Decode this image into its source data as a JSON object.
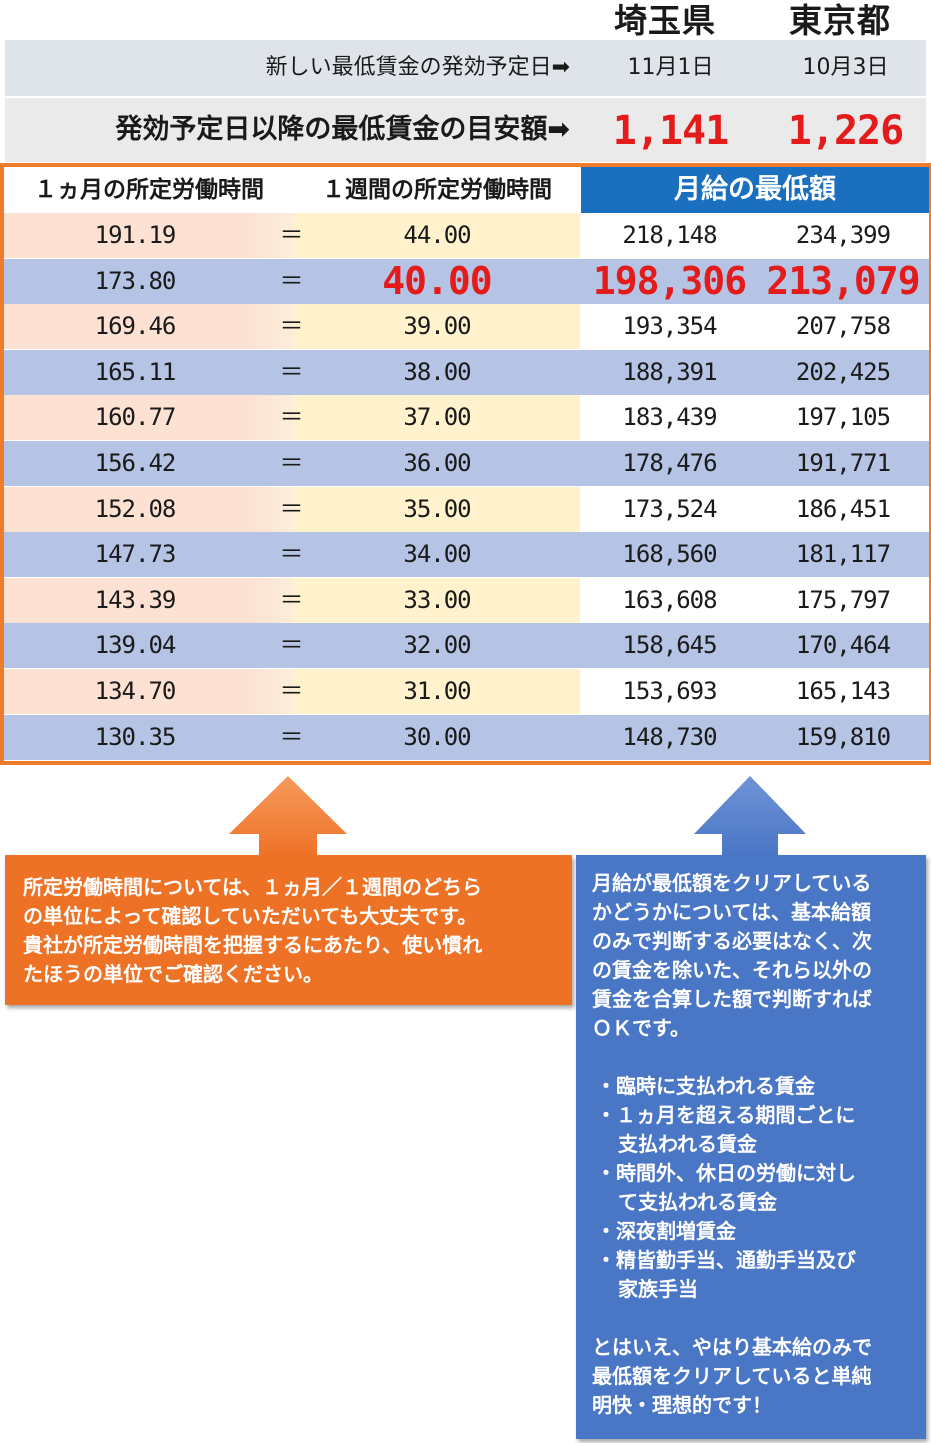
{
  "prefectures": [
    "埼玉県",
    "東京都"
  ],
  "effective": {
    "label": "新しい最低賃金の発効予定日➡",
    "saitama": "11月1日",
    "tokyo": "10月3日"
  },
  "wage": {
    "label": "発効予定日以降の最低賃金の目安額➡",
    "saitama": "1,141",
    "tokyo": "1,226"
  },
  "table": {
    "headers": [
      "１ヵ月の所定労働時間",
      "１週間の所定労働時間",
      "月給の最低額"
    ],
    "eq": "＝",
    "rows": [
      {
        "month": "191.19",
        "week": "44.00",
        "saitama": "218,148",
        "tokyo": "234,399"
      },
      {
        "month": "173.80",
        "week": "40.00",
        "saitama": "198,306",
        "tokyo": "213,079"
      },
      {
        "month": "169.46",
        "week": "39.00",
        "saitama": "193,354",
        "tokyo": "207,758"
      },
      {
        "month": "165.11",
        "week": "38.00",
        "saitama": "188,391",
        "tokyo": "202,425"
      },
      {
        "month": "160.77",
        "week": "37.00",
        "saitama": "183,439",
        "tokyo": "197,105"
      },
      {
        "month": "156.42",
        "week": "36.00",
        "saitama": "178,476",
        "tokyo": "191,771"
      },
      {
        "month": "152.08",
        "week": "35.00",
        "saitama": "173,524",
        "tokyo": "186,451"
      },
      {
        "month": "147.73",
        "week": "34.00",
        "saitama": "168,560",
        "tokyo": "181,117"
      },
      {
        "month": "143.39",
        "week": "33.00",
        "saitama": "163,608",
        "tokyo": "175,797"
      },
      {
        "month": "139.04",
        "week": "32.00",
        "saitama": "158,645",
        "tokyo": "170,464"
      },
      {
        "month": "134.70",
        "week": "31.00",
        "saitama": "153,693",
        "tokyo": "165,143"
      },
      {
        "month": "130.35",
        "week": "30.00",
        "saitama": "148,730",
        "tokyo": "159,810"
      }
    ]
  },
  "note_left": [
    "所定労働時間については、１ヵ月／１週間のどちら",
    "の単位によって確認していただいても大丈夫です。",
    "貴社が所定労働時間を把握するにあたり、使い慣れ",
    "たほうの単位でご確認ください。"
  ],
  "note_right": {
    "intro": [
      "月給が最低額をクリアしている",
      "かどうかについては、基本給額",
      "のみで判断する必要はなく、次",
      "の賃金を除いた、それら以外の",
      "賃金を合算した額で判断すれば",
      "ＯＫです。"
    ],
    "bullets": [
      [
        "・臨時に支払われる賃金"
      ],
      [
        "・１ヵ月を超える期間ごとに",
        "支払われる賃金"
      ],
      [
        "・時間外、休日の労働に対し",
        "て支払われる賃金"
      ],
      [
        "・深夜割増賃金"
      ],
      [
        "・精皆勤手当、通勤手当及び",
        "家族手当"
      ]
    ],
    "outro": [
      "とはいえ、やはり基本給のみで",
      "最低額をクリアしていると単純",
      "明快・理想的です！"
    ]
  }
}
